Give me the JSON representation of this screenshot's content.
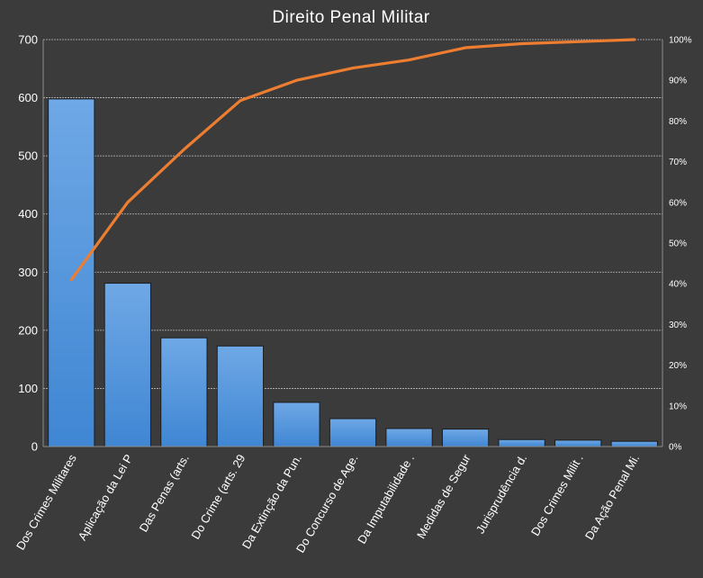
{
  "chart_data": {
    "type": "bar",
    "title": "Direito Penal Militar",
    "categories": [
      "Dos Crimes Militares",
      "Aplicação da Lei P",
      "Das Penas (arts.",
      "Do Crime (arts. 29",
      "Da Extinção da Pun.",
      "Do Concurso de Age.",
      "Da Imputabilidade .",
      "Medidas de Segur",
      "Jurisprudência d.",
      "Dos Crimes Milit .",
      "Da Ação Penal Mi."
    ],
    "series": [
      {
        "type": "bar",
        "values": [
          598,
          281,
          187,
          173,
          76,
          48,
          31,
          30,
          12,
          11,
          9
        ],
        "color": "#4a8fd6"
      },
      {
        "type": "line",
        "axis": "right",
        "values": [
          41,
          60,
          73,
          85,
          90,
          93,
          95,
          98,
          99,
          99.5,
          100
        ],
        "color": "#ed7d31"
      }
    ],
    "y_left": {
      "min": 0,
      "max": 700,
      "ticks": [
        "0",
        "100",
        "200",
        "300",
        "400",
        "500",
        "600",
        "700"
      ]
    },
    "y_right": {
      "min": 0,
      "max": 100,
      "ticks": [
        "0%",
        "10%",
        "20%",
        "30%",
        "40%",
        "50%",
        "60%",
        "70%",
        "80%",
        "90%",
        "100%"
      ]
    },
    "grid": true,
    "legend": "none"
  }
}
